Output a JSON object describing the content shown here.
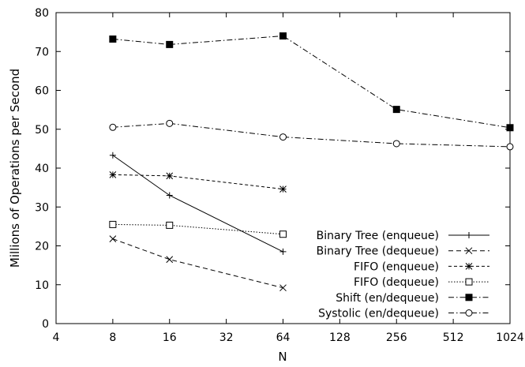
{
  "chart_data": {
    "type": "line",
    "title": "",
    "xlabel": "N",
    "ylabel": "Millions of Operations per Second",
    "xscale": "log2",
    "xlim": [
      4,
      1024
    ],
    "ylim": [
      0,
      80
    ],
    "x_ticks": [
      4,
      8,
      16,
      32,
      64,
      128,
      256,
      512,
      1024
    ],
    "x_tick_labels": [
      "4",
      "8",
      "16",
      "32",
      "64",
      "128",
      "256",
      "512",
      "1024"
    ],
    "y_ticks": [
      0,
      10,
      20,
      30,
      40,
      50,
      60,
      70,
      80
    ],
    "y_tick_labels": [
      "0",
      "10",
      "20",
      "30",
      "40",
      "50",
      "60",
      "70",
      "80"
    ],
    "grid": false,
    "legend_position": "bottom-right",
    "series": [
      {
        "name": "Binary Tree (enqueue)",
        "marker": "plus",
        "dash": "solid",
        "x": [
          8,
          16,
          64
        ],
        "y": [
          43.3,
          33.0,
          18.5
        ]
      },
      {
        "name": "Binary Tree (dequeue)",
        "marker": "cross",
        "dash": "dashed",
        "x": [
          8,
          16,
          64
        ],
        "y": [
          21.8,
          16.5,
          9.2
        ]
      },
      {
        "name": "FIFO (enqueue)",
        "marker": "asterisk",
        "dash": "short-dashed",
        "x": [
          8,
          16,
          64
        ],
        "y": [
          38.3,
          38.0,
          34.6
        ]
      },
      {
        "name": "FIFO (dequeue)",
        "marker": "open-square",
        "dash": "dotted",
        "x": [
          8,
          16,
          64
        ],
        "y": [
          25.5,
          25.3,
          23.0
        ]
      },
      {
        "name": "Shift (en/dequeue)",
        "marker": "filled-square",
        "dash": "dash-dot",
        "x": [
          8,
          16,
          64,
          256,
          1024
        ],
        "y": [
          73.2,
          71.8,
          74.0,
          55.1,
          50.4
        ]
      },
      {
        "name": "Systolic (en/dequeue)",
        "marker": "open-circle",
        "dash": "dash-dot",
        "x": [
          8,
          16,
          64,
          256,
          1024
        ],
        "y": [
          50.5,
          51.5,
          48.0,
          46.3,
          45.5
        ]
      }
    ]
  }
}
